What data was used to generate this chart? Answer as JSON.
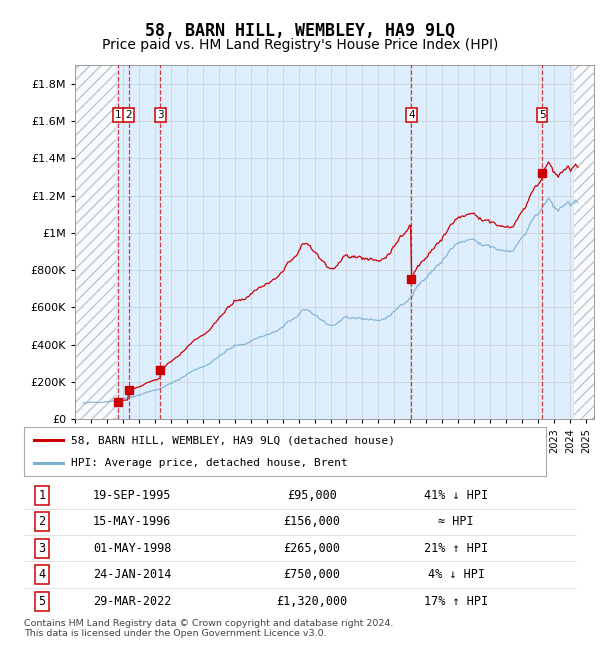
{
  "title": "58, BARN HILL, WEMBLEY, HA9 9LQ",
  "subtitle": "Price paid vs. HM Land Registry's House Price Index (HPI)",
  "xlim": [
    1993.0,
    2025.5
  ],
  "ylim": [
    0,
    1900000
  ],
  "yticks": [
    0,
    200000,
    400000,
    600000,
    800000,
    1000000,
    1200000,
    1400000,
    1600000,
    1800000
  ],
  "ytick_labels": [
    "£0",
    "£200K",
    "£400K",
    "£600K",
    "£800K",
    "£1M",
    "£1.2M",
    "£1.4M",
    "£1.6M",
    "£1.8M"
  ],
  "xticks": [
    1993,
    1994,
    1995,
    1996,
    1997,
    1998,
    1999,
    2000,
    2001,
    2002,
    2003,
    2004,
    2005,
    2006,
    2007,
    2008,
    2009,
    2010,
    2011,
    2012,
    2013,
    2014,
    2015,
    2016,
    2017,
    2018,
    2019,
    2020,
    2021,
    2022,
    2023,
    2024,
    2025
  ],
  "hatch_left_end": 1995.58,
  "hatch_right_start": 2024.25,
  "purchases": [
    {
      "num": 1,
      "year": 1995.72,
      "price": 95000,
      "label": "1"
    },
    {
      "num": 2,
      "year": 1996.37,
      "price": 156000,
      "label": "2"
    },
    {
      "num": 3,
      "year": 1998.33,
      "price": 265000,
      "label": "3"
    },
    {
      "num": 4,
      "year": 2014.07,
      "price": 750000,
      "label": "4"
    },
    {
      "num": 5,
      "year": 2022.25,
      "price": 1320000,
      "label": "5"
    }
  ],
  "table_rows": [
    {
      "num": 1,
      "date": "19-SEP-1995",
      "price": "£95,000",
      "hpi": "41% ↓ HPI"
    },
    {
      "num": 2,
      "date": "15-MAY-1996",
      "price": "£156,000",
      "hpi": "≈ HPI"
    },
    {
      "num": 3,
      "date": "01-MAY-1998",
      "price": "£265,000",
      "hpi": "21% ↑ HPI"
    },
    {
      "num": 4,
      "date": "24-JAN-2014",
      "price": "£750,000",
      "hpi": "4% ↓ HPI"
    },
    {
      "num": 5,
      "date": "29-MAR-2022",
      "price": "£1,320,000",
      "hpi": "17% ↑ HPI"
    }
  ],
  "legend_line1": "58, BARN HILL, WEMBLEY, HA9 9LQ (detached house)",
  "legend_line2": "HPI: Average price, detached house, Brent",
  "footer": "Contains HM Land Registry data © Crown copyright and database right 2024.\nThis data is licensed under the Open Government Licence v3.0.",
  "line_color_red": "#cc0000",
  "line_color_blue": "#7bafd4",
  "bg_color": "#ddeeff",
  "box_color": "#cc0000",
  "title_fontsize": 12,
  "subtitle_fontsize": 10
}
